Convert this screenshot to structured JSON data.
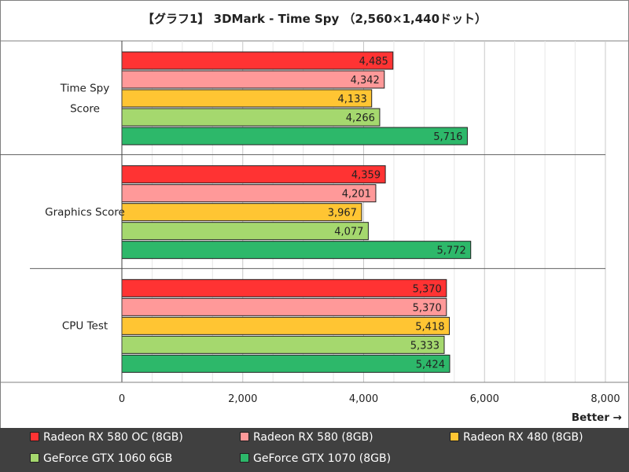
{
  "chart_data": {
    "type": "bar",
    "orientation": "horizontal",
    "title": "【グラフ1】 3DMark - Time Spy （2,560×1,440ドット）",
    "categories": [
      "Time Spy\nScore",
      "Graphics Score",
      "CPU Test"
    ],
    "series": [
      {
        "name": "Radeon RX 580 OC (8GB)",
        "color": "#ff3333",
        "values": [
          4485,
          4359,
          5370
        ]
      },
      {
        "name": "Radeon RX 580 (8GB)",
        "color": "#ff9999",
        "values": [
          4342,
          4201,
          5370
        ]
      },
      {
        "name": "Radeon RX 480 (8GB)",
        "color": "#ffc533",
        "values": [
          4133,
          3967,
          5418
        ]
      },
      {
        "name": "GeForce GTX 1060 6GB",
        "color": "#a5d86e",
        "values": [
          4266,
          4077,
          5333
        ]
      },
      {
        "name": "GeForce GTX 1070 (8GB)",
        "color": "#2db86a",
        "values": [
          5716,
          5772,
          5424
        ]
      }
    ],
    "xlim": [
      0,
      8000
    ],
    "xticks": [
      0,
      2000,
      4000,
      6000,
      8000
    ],
    "xtick_labels": [
      "0",
      "2,000",
      "4,000",
      "6,000",
      "8,000"
    ],
    "xlabel": "Better →",
    "minor_grid_step": 500,
    "legend_position": "bottom"
  }
}
